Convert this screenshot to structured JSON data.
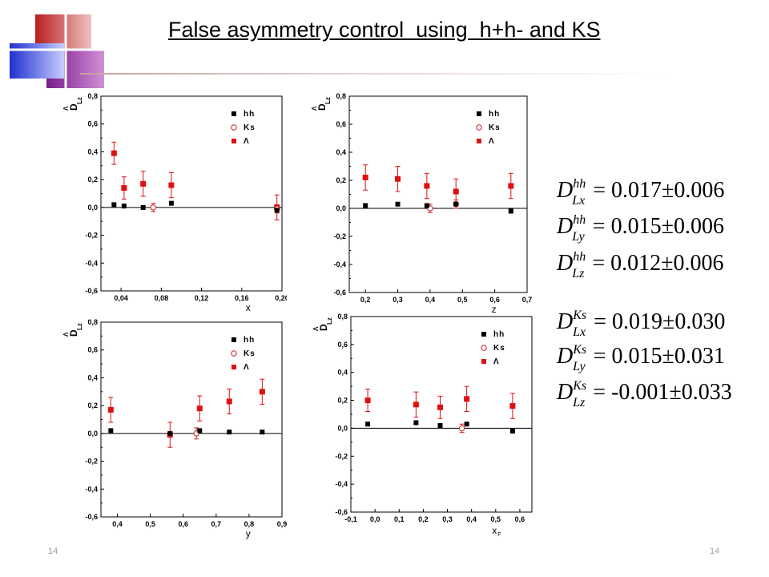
{
  "slide": {
    "title": "False asymmetry control  using  h+h- and KS",
    "page_left": "14",
    "page_right": "14"
  },
  "colors": {
    "hh": "#000000",
    "ks": "#cc2222",
    "lambda": "#dd1111",
    "axis": "#000000"
  },
  "chart_data": [
    {
      "type": "scatter",
      "xlabel": "x",
      "ylabel": "D^Λ_Lz",
      "xlim": [
        0.02,
        0.2
      ],
      "ylim": [
        -0.6,
        0.8
      ],
      "xticks": [
        0.04,
        0.08,
        0.12,
        0.16,
        0.2
      ],
      "xtick_labels": [
        "0,04",
        "0,08",
        "0,12",
        "0,16",
        "0,20"
      ],
      "yticks": [
        -0.6,
        -0.4,
        -0.2,
        0.0,
        0.2,
        0.4,
        0.6,
        0.8
      ],
      "ytick_labels": [
        "-0,6",
        "-0,4",
        "-0,2",
        "0,0",
        "0,2",
        "0,4",
        "0,6",
        "0,8"
      ],
      "legend": [
        "hh",
        "Ks",
        "Λ"
      ],
      "legend_position": "top-right",
      "series": [
        {
          "name": "hh",
          "x": [
            0.033,
            0.043,
            0.062,
            0.09,
            0.195
          ],
          "y": [
            0.02,
            0.01,
            0.0,
            0.03,
            -0.02
          ],
          "err": [
            0,
            0,
            0,
            0,
            0
          ]
        },
        {
          "name": "Ks",
          "x": [
            0.072,
            0.195
          ],
          "y": [
            0.0,
            -0.01
          ],
          "err": [
            0.03,
            0.03
          ]
        },
        {
          "name": "Λ",
          "x": [
            0.033,
            0.043,
            0.062,
            0.09,
            0.195
          ],
          "y": [
            0.39,
            0.14,
            0.17,
            0.16,
            0.0
          ],
          "err": [
            0.08,
            0.08,
            0.09,
            0.09,
            0.09
          ]
        }
      ]
    },
    {
      "type": "scatter",
      "xlabel": "z",
      "ylabel": "D^Λ_Lz",
      "xlim": [
        0.15,
        0.7
      ],
      "ylim": [
        -0.6,
        0.8
      ],
      "xticks": [
        0.2,
        0.3,
        0.4,
        0.5,
        0.6,
        0.7
      ],
      "xtick_labels": [
        "0,2",
        "0,3",
        "0,4",
        "0,5",
        "0,6",
        "0,7"
      ],
      "yticks": [
        -0.6,
        -0.4,
        -0.2,
        0.0,
        0.2,
        0.4,
        0.6,
        0.8
      ],
      "ytick_labels": [
        "-0,6",
        "-0,4",
        "-0,2",
        "0,0",
        "0,2",
        "0,4",
        "0,6",
        "0,8"
      ],
      "legend": [
        "hh",
        "Ks",
        "Λ"
      ],
      "legend_position": "top-right",
      "series": [
        {
          "name": "hh",
          "x": [
            0.2,
            0.3,
            0.39,
            0.48,
            0.65
          ],
          "y": [
            0.02,
            0.03,
            0.02,
            0.03,
            -0.02
          ],
          "err": [
            0,
            0,
            0,
            0,
            0
          ]
        },
        {
          "name": "Ks",
          "x": [
            0.4,
            0.48
          ],
          "y": [
            0.0,
            0.03
          ],
          "err": [
            0.03,
            0.03
          ]
        },
        {
          "name": "Λ",
          "x": [
            0.2,
            0.3,
            0.39,
            0.48,
            0.65
          ],
          "y": [
            0.22,
            0.21,
            0.16,
            0.12,
            0.16
          ],
          "err": [
            0.09,
            0.09,
            0.09,
            0.09,
            0.09
          ]
        }
      ]
    },
    {
      "type": "scatter",
      "xlabel": "y",
      "ylabel": "D^Λ_Lz",
      "xlim": [
        0.35,
        0.9
      ],
      "ylim": [
        -0.6,
        0.8
      ],
      "xticks": [
        0.4,
        0.5,
        0.6,
        0.7,
        0.8,
        0.9
      ],
      "xtick_labels": [
        "0,4",
        "0,5",
        "0,6",
        "0,7",
        "0,8",
        "0,9"
      ],
      "yticks": [
        -0.6,
        -0.4,
        -0.2,
        0.0,
        0.2,
        0.4,
        0.6,
        0.8
      ],
      "ytick_labels": [
        "-0,6",
        "-0,4",
        "-0,2",
        "0,0",
        "0,2",
        "0,4",
        "0,6",
        "0,8"
      ],
      "legend": [
        "hh",
        "Ks",
        "Λ"
      ],
      "legend_position": "top-right",
      "series": [
        {
          "name": "hh",
          "x": [
            0.38,
            0.56,
            0.65,
            0.74,
            0.84
          ],
          "y": [
            0.02,
            0.0,
            0.02,
            0.01,
            0.01
          ],
          "err": [
            0,
            0,
            0,
            0,
            0
          ]
        },
        {
          "name": "Ks",
          "x": [
            0.64
          ],
          "y": [
            0.0
          ],
          "err": [
            0.04
          ]
        },
        {
          "name": "Λ",
          "x": [
            0.38,
            0.56,
            0.65,
            0.74,
            0.84
          ],
          "y": [
            0.17,
            -0.01,
            0.18,
            0.23,
            0.3
          ],
          "err": [
            0.09,
            0.09,
            0.09,
            0.09,
            0.09
          ]
        }
      ]
    },
    {
      "type": "scatter",
      "xlabel": "x_F",
      "ylabel": "D^Λ_Lz",
      "xlim": [
        -0.1,
        0.65
      ],
      "ylim": [
        -0.6,
        0.8
      ],
      "xticks": [
        -0.1,
        0.0,
        0.1,
        0.2,
        0.3,
        0.4,
        0.5,
        0.6
      ],
      "xtick_labels": [
        "-0,1",
        "0,0",
        "0,1",
        "0,2",
        "0,3",
        "0,4",
        "0,5",
        "0,6"
      ],
      "yticks": [
        -0.6,
        -0.4,
        -0.2,
        0.0,
        0.2,
        0.4,
        0.6,
        0.8
      ],
      "ytick_labels": [
        "-0,6",
        "-0,4",
        "-0,2",
        "0,0",
        "0,2",
        "0,4",
        "0,6",
        "0,8"
      ],
      "legend": [
        "hh",
        "Ks",
        "Λ"
      ],
      "legend_position": "top-right",
      "series": [
        {
          "name": "hh",
          "x": [
            -0.03,
            0.17,
            0.27,
            0.38,
            0.57
          ],
          "y": [
            0.03,
            0.04,
            0.02,
            0.03,
            -0.02
          ],
          "err": [
            0,
            0,
            0,
            0,
            0
          ]
        },
        {
          "name": "Ks",
          "x": [
            0.36
          ],
          "y": [
            0.0
          ],
          "err": [
            0.03
          ]
        },
        {
          "name": "Λ",
          "x": [
            -0.03,
            0.17,
            0.27,
            0.38,
            0.57
          ],
          "y": [
            0.2,
            0.17,
            0.15,
            0.21,
            0.16
          ],
          "err": [
            0.08,
            0.09,
            0.08,
            0.09,
            0.09
          ]
        }
      ]
    }
  ],
  "formulas": [
    {
      "sup": "hh",
      "sub": "Lx",
      "value": "0.017",
      "err": "0.006"
    },
    {
      "sup": "hh",
      "sub": "Ly",
      "value": "0.015",
      "err": "0.006"
    },
    {
      "sup": "hh",
      "sub": "Lz",
      "value": "0.012",
      "err": "0.006"
    },
    {
      "sup": "Ks",
      "sub": "Lx",
      "value": "0.019",
      "err": "0.030"
    },
    {
      "sup": "Ks",
      "sub": "Ly",
      "value": "0.015",
      "err": "0.031"
    },
    {
      "sup": "Ks",
      "sub": "Lz",
      "value": "-0.001",
      "err": "0.033"
    }
  ]
}
